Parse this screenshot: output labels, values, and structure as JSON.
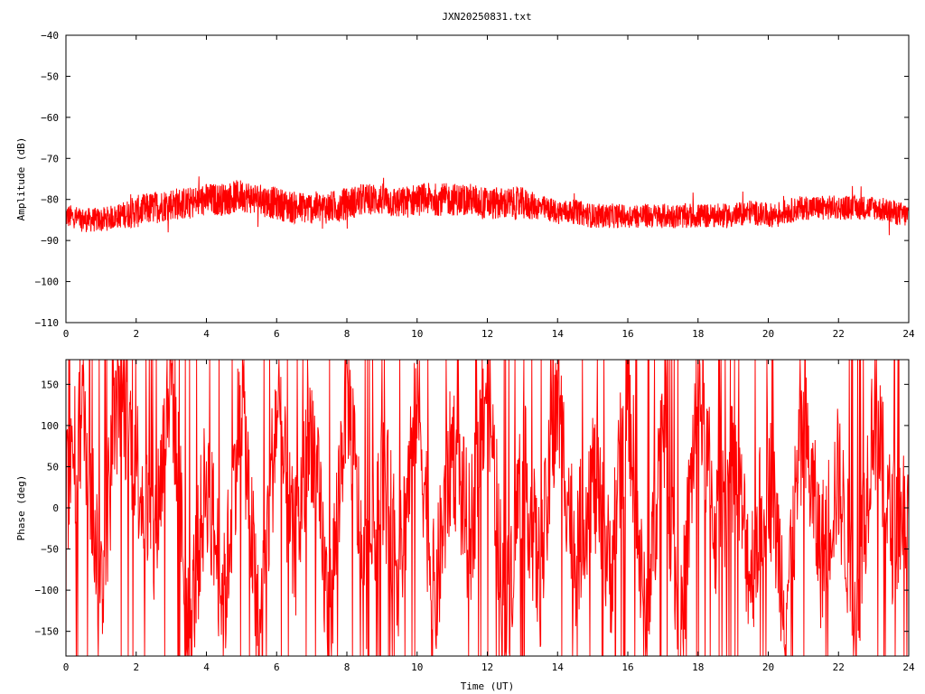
{
  "figure_title": "JXN20250831.txt",
  "colors": {
    "series": "#ff0000",
    "axis": "#000000",
    "background": "#ffffff"
  },
  "chart_data": [
    {
      "type": "line",
      "title": "JXN20250831.txt",
      "xlabel": "",
      "ylabel": "Amplitude (dB)",
      "xlim": [
        0,
        24
      ],
      "ylim": [
        -110,
        -40
      ],
      "xticks": [
        0,
        2,
        4,
        6,
        8,
        10,
        12,
        14,
        16,
        18,
        20,
        22,
        24
      ],
      "yticks": [
        -40,
        -50,
        -60,
        -70,
        -80,
        -90,
        -100,
        -110
      ],
      "grid": false,
      "series": [
        {
          "color": "#ff0000",
          "x": [
            0,
            0.5,
            1,
            1.5,
            2,
            2.5,
            3,
            3.5,
            4,
            4.5,
            5,
            5.5,
            6,
            6.5,
            7,
            7.5,
            8,
            8.5,
            9,
            9.5,
            10,
            10.5,
            11,
            11.5,
            12,
            12.5,
            13,
            13.5,
            14,
            14.5,
            15,
            15.5,
            16,
            16.5,
            17,
            17.5,
            18,
            18.5,
            19,
            19.5,
            20,
            20.5,
            21,
            21.5,
            22,
            22.5,
            23,
            23.5,
            24
          ],
          "values": [
            -84,
            -85,
            -85,
            -84,
            -83,
            -82,
            -81,
            -81,
            -80,
            -80,
            -79,
            -80,
            -81,
            -82,
            -82,
            -82,
            -81,
            -80,
            -80,
            -81,
            -80,
            -80,
            -80,
            -80,
            -81,
            -81,
            -81,
            -82,
            -83,
            -83,
            -84,
            -84,
            -84,
            -84,
            -84,
            -84,
            -84,
            -84,
            -84,
            -83,
            -84,
            -83,
            -82,
            -82,
            -82,
            -82,
            -82,
            -83,
            -84
          ],
          "spread_db": [
            3,
            3,
            3,
            3,
            4,
            4,
            4,
            4,
            4,
            4,
            4,
            4,
            4,
            4,
            4,
            4,
            4,
            4,
            4,
            4,
            4,
            4,
            4,
            4,
            4,
            4,
            4,
            3,
            3,
            3,
            3,
            3,
            3,
            3,
            3,
            3,
            3,
            3,
            3,
            3,
            3,
            3,
            3,
            3,
            3,
            3,
            3,
            3,
            3
          ]
        }
      ]
    },
    {
      "type": "line",
      "title": "",
      "xlabel": "Time (UT)",
      "ylabel": "Phase (deg)",
      "xlim": [
        0,
        24
      ],
      "ylim": [
        -180,
        180
      ],
      "xticks": [
        0,
        2,
        4,
        6,
        8,
        10,
        12,
        14,
        16,
        18,
        20,
        22,
        24
      ],
      "yticks": [
        150,
        100,
        50,
        0,
        -50,
        -100,
        -150
      ],
      "grid": false,
      "series": [
        {
          "color": "#ff0000",
          "x": [
            0,
            0.5,
            1,
            1.5,
            2,
            2.5,
            3,
            3.5,
            4,
            4.5,
            5,
            5.5,
            6,
            6.5,
            7,
            7.5,
            8,
            8.5,
            9,
            9.5,
            10,
            10.5,
            11,
            11.5,
            12,
            12.5,
            13,
            13.5,
            14,
            14.5,
            15,
            15.5,
            16,
            16.5,
            17,
            17.5,
            18,
            18.5,
            19,
            19.5,
            20,
            20.5,
            21,
            21.5,
            22,
            22.5,
            23,
            23.5,
            24
          ],
          "values": [
            0,
            120,
            -100,
            150,
            60,
            -50,
            170,
            -160,
            40,
            -120,
            150,
            -170,
            120,
            -60,
            100,
            -150,
            160,
            -100,
            50,
            -80,
            140,
            -120,
            80,
            -40,
            170,
            -150,
            60,
            -90,
            130,
            -60,
            40,
            -80,
            150,
            -160,
            120,
            -170,
            160,
            -30,
            60,
            -80,
            50,
            -120,
            100,
            -60,
            40,
            -130,
            120,
            -30,
            10
          ]
        }
      ]
    }
  ]
}
